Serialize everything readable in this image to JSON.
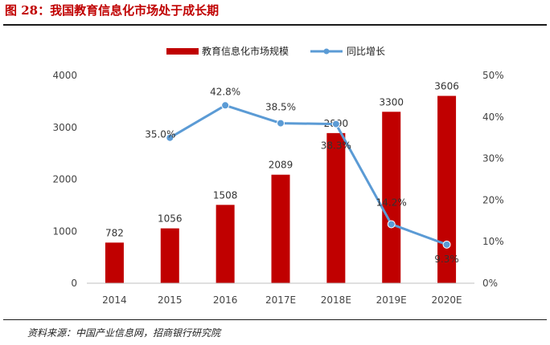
{
  "figure": {
    "title": "图 28：我国教育信息化市场处于成长期",
    "source": "资料来源：中国产业信息网，招商银行研究院"
  },
  "chart_data": {
    "type": "bar+line",
    "categories": [
      "2014",
      "2015",
      "2016",
      "2017E",
      "2018E",
      "2019E",
      "2020E"
    ],
    "series": [
      {
        "name": "教育信息化市场规模",
        "type": "bar",
        "axis": "left",
        "values": [
          782,
          1056,
          1508,
          2089,
          2890,
          3300,
          3606
        ],
        "labels": [
          "782",
          "1056",
          "1508",
          "2089",
          "2890",
          "3300",
          "3606"
        ],
        "color": "#c00000"
      },
      {
        "name": "同比增长",
        "type": "line",
        "axis": "right",
        "values": [
          null,
          35.0,
          42.8,
          38.5,
          38.3,
          14.2,
          9.3
        ],
        "labels": [
          "",
          "35.0%",
          "42.8%",
          "38.5%",
          "38.3%",
          "14.2%",
          "9.3%"
        ],
        "color": "#5b9bd5"
      }
    ],
    "y_left": {
      "min": 0,
      "max": 4000,
      "ticks": [
        "0",
        "1000",
        "2000",
        "3000",
        "4000"
      ]
    },
    "y_right": {
      "min": 0,
      "max": 50,
      "ticks": [
        "0%",
        "10%",
        "20%",
        "30%",
        "40%",
        "50%"
      ]
    },
    "legend_position": "top-center",
    "grid": false
  }
}
